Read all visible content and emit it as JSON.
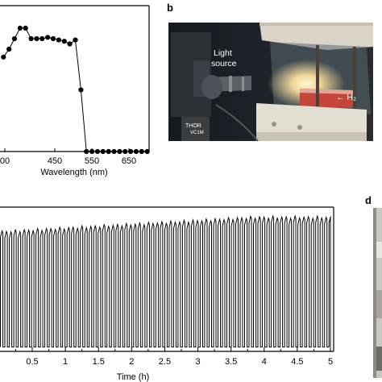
{
  "panel_labels": {
    "b": "b",
    "d": "d"
  },
  "photo_b": {
    "label_light_source_line1": "Light",
    "label_light_source_line2": "source",
    "label_h2": "← H₂",
    "equipment_text_1": "THOR",
    "equipment_text_2": "VC1M"
  },
  "chart_data": [
    {
      "type": "scatter",
      "xlabel": "Wavelength (nm)",
      "xlim": [
        300,
        700
      ],
      "x_tick_labels": [
        "00",
        "450",
        "550",
        "650"
      ],
      "x": [
        305,
        320,
        335,
        350,
        365,
        380,
        395,
        410,
        425,
        440,
        455,
        470,
        485,
        500,
        515,
        530,
        545,
        560,
        575,
        590,
        605,
        620,
        635,
        650,
        665,
        680,
        695
      ],
      "series": [
        {
          "values": [
            0.72,
            0.78,
            0.86,
            0.94,
            0.94,
            0.86,
            0.86,
            0.86,
            0.87,
            0.86,
            0.85,
            0.84,
            0.82,
            0.85,
            0.47,
            0.0,
            0.0,
            0.0,
            0.0,
            0.0,
            0.0,
            0.0,
            0.0,
            0.0,
            0.0,
            0.0,
            0.0
          ]
        }
      ]
    },
    {
      "type": "line",
      "xlabel": "Time (h)",
      "xlim": [
        0,
        5
      ],
      "x_ticks": [
        0.5,
        1,
        1.5,
        2,
        2.5,
        3,
        3.5,
        4,
        4.5,
        5
      ],
      "x_tick_labels": [
        "0.5",
        "1",
        "1.5",
        "2",
        "2.5",
        "3",
        "3.5",
        "4",
        "4.5",
        "5"
      ],
      "cycle_period_h": 0.067,
      "on_fraction": 0.55,
      "series": [
        {
          "values_on_level_start": 0.83,
          "values_on_level_end": 0.93,
          "values_off_level": 0.03
        }
      ]
    }
  ]
}
